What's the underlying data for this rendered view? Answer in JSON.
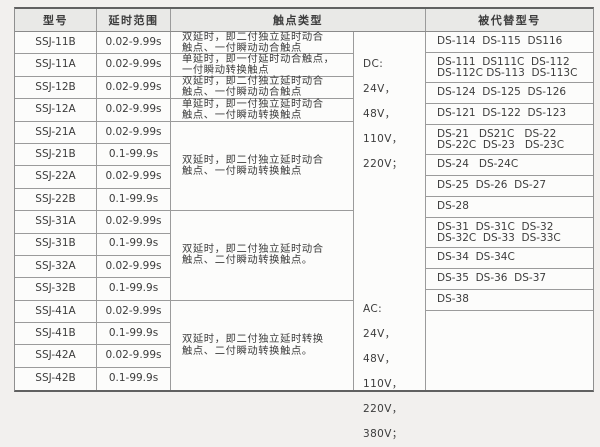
{
  "table": {
    "headers": {
      "model": "型号",
      "delay_range": "延时范围",
      "contact_type": "触点类型",
      "replaced_model": "被代替型号"
    },
    "rows": [
      {
        "model": "SSJ-11B",
        "delay": "0.02-9.99s"
      },
      {
        "model": "SSJ-11A",
        "delay": "0.02-9.99s"
      },
      {
        "model": "SSJ-12B",
        "delay": "0.02-9.99s"
      },
      {
        "model": "SSJ-12A",
        "delay": "0.02-9.99s"
      },
      {
        "model": "SSJ-21A",
        "delay": "0.02-9.99s"
      },
      {
        "model": "SSJ-21B",
        "delay": "0.1-99.9s"
      },
      {
        "model": "SSJ-22A",
        "delay": "0.02-9.99s"
      },
      {
        "model": "SSJ-22B",
        "delay": "0.1-99.9s"
      },
      {
        "model": "SSJ-31A",
        "delay": "0.02-9.99s"
      },
      {
        "model": "SSJ-31B",
        "delay": "0.1-99.9s"
      },
      {
        "model": "SSJ-32A",
        "delay": "0.02-9.99s"
      },
      {
        "model": "SSJ-32B",
        "delay": "0.1-99.9s"
      },
      {
        "model": "SSJ-41A",
        "delay": "0.02-9.99s"
      },
      {
        "model": "SSJ-41B",
        "delay": "0.1-99.9s"
      },
      {
        "model": "SSJ-42A",
        "delay": "0.02-9.99s"
      },
      {
        "model": "SSJ-42B",
        "delay": "0.1-99.9s"
      }
    ],
    "contact_cells": [
      {
        "span": 1,
        "text": "双延时，即二付独立延时动合\n触点、一付瞬动动合触点"
      },
      {
        "span": 1,
        "text": "单延时，即一付延时动合触点，\n一付瞬动转换触点"
      },
      {
        "span": 1,
        "text": "双延时，即二付独立延时动合\n触点、一付瞬动动合触点"
      },
      {
        "span": 1,
        "text": "单延时，即一付独立延时动合\n触点、一付瞬动转换触点"
      },
      {
        "span": 4,
        "text": "双延时，即二付独立延时动合\n触点、一付瞬动转换触点"
      },
      {
        "span": 4,
        "text": "双延时，即二付独立延时动合\n触点、二付瞬动转换触点。"
      },
      {
        "span": 4,
        "text": "双延时，即二付独立延时转换\n触点、二付瞬动转换触点。"
      }
    ],
    "voltage": {
      "dc": "DC:\n24V，48V，\n110V，220V；",
      "ac": "AC:\n24V，48V，\n110V，220V，\n380V；"
    },
    "replaced_cells": [
      "DS-114  DS-115  DS116",
      "DS-111  DS111C  DS-112\nDS-112C DS-113  DS-113C",
      "DS-124  DS-125  DS-126",
      "DS-121  DS-122  DS-123",
      "DS-21   DS21C   DS-22\nDS-22C  DS-23   DS-23C",
      "DS-24   DS-24C",
      "DS-25  DS-26  DS-27",
      "DS-28",
      "DS-31  DS-31C  DS-32\nDS-32C  DS-33  DS-33C",
      "DS-34  DS-34C",
      "DS-35  DS-36  DS-37",
      "DS-38"
    ],
    "colors": {
      "page_background": "#f2f0ee",
      "table_background": "#fcfcfb",
      "header_background": "#e9e9e7",
      "grid_line": "#9b9b9b",
      "text": "#3c3c3c"
    }
  }
}
